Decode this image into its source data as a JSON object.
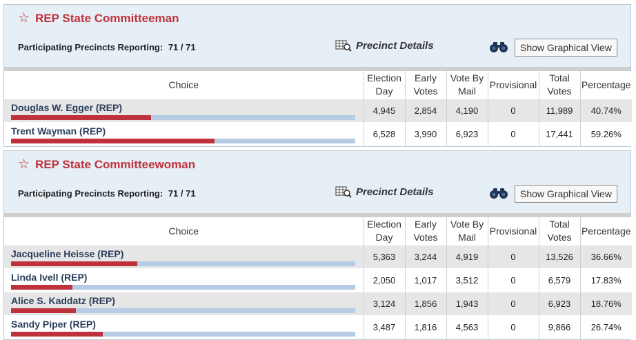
{
  "races": [
    {
      "title": "REP State Committeeman",
      "precincts_label": "Participating Precincts Reporting:",
      "precincts_value": "71 / 71",
      "details_label": "Precinct Details",
      "graph_button": "Show Graphical View",
      "columns": {
        "choice": "Choice",
        "election_day": [
          "Election",
          "Day"
        ],
        "early": [
          "Early",
          "Votes"
        ],
        "mail": [
          "Vote By",
          "Mail"
        ],
        "provisional": "Provisional",
        "total": [
          "Total",
          "Votes"
        ],
        "percentage": "Percentage"
      },
      "candidates": [
        {
          "name": "Douglas W. Egger (REP)",
          "election_day": "4,945",
          "early": "2,854",
          "mail": "4,190",
          "provisional": "0",
          "total": "11,989",
          "percentage": "40.74%",
          "share": 0.4074
        },
        {
          "name": "Trent Wayman (REP)",
          "election_day": "6,528",
          "early": "3,990",
          "mail": "6,923",
          "provisional": "0",
          "total": "17,441",
          "percentage": "59.26%",
          "share": 0.5926
        }
      ]
    },
    {
      "title": "REP State Committeewoman",
      "precincts_label": "Participating Precincts Reporting:",
      "precincts_value": "71 / 71",
      "details_label": "Precinct Details",
      "graph_button": "Show Graphical View",
      "columns": {
        "choice": "Choice",
        "election_day": [
          "Election",
          "Day"
        ],
        "early": [
          "Early",
          "Votes"
        ],
        "mail": [
          "Vote By",
          "Mail"
        ],
        "provisional": "Provisional",
        "total": [
          "Total",
          "Votes"
        ],
        "percentage": "Percentage"
      },
      "candidates": [
        {
          "name": "Jacqueline Heisse (REP)",
          "election_day": "5,363",
          "early": "3,244",
          "mail": "4,919",
          "provisional": "0",
          "total": "13,526",
          "percentage": "36.66%",
          "share": 0.3666
        },
        {
          "name": "Linda Ivell (REP)",
          "election_day": "2,050",
          "early": "1,017",
          "mail": "3,512",
          "provisional": "0",
          "total": "6,579",
          "percentage": "17.83%",
          "share": 0.1783
        },
        {
          "name": "Alice S. Kaddatz (REP)",
          "election_day": "3,124",
          "early": "1,856",
          "mail": "1,943",
          "provisional": "0",
          "total": "6,923",
          "percentage": "18.76%",
          "share": 0.1876
        },
        {
          "name": "Sandy Piper (REP)",
          "election_day": "3,487",
          "early": "1,816",
          "mail": "4,563",
          "provisional": "0",
          "total": "9,866",
          "percentage": "26.74%",
          "share": 0.2674
        }
      ]
    }
  ],
  "colors": {
    "accent": "#c0323b",
    "bar_track": "#b5cce4",
    "header_bg": "#e6eef6"
  },
  "icons": {
    "title": "star-icon",
    "details": "grid-magnifier-icon",
    "graph": "binoculars-icon"
  }
}
